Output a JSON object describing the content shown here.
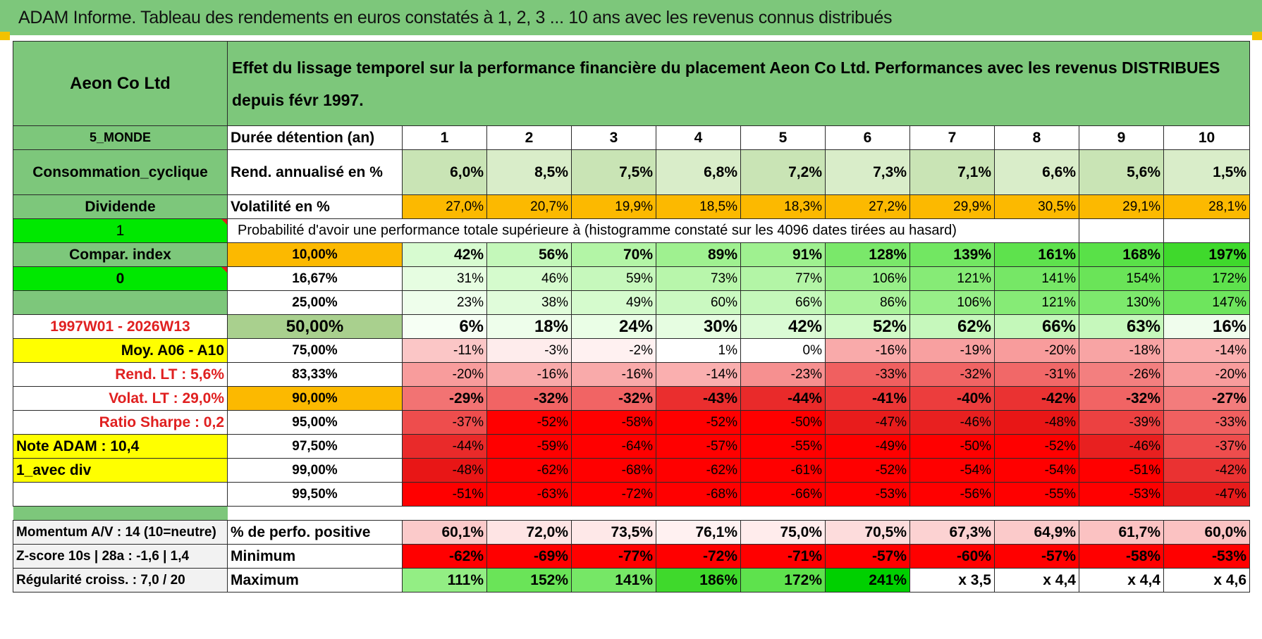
{
  "title": "ADAM Informe. Tableau des rendements en euros constatés à 1, 2, 3 ... 10 ans avec les revenus connus distribués",
  "header": {
    "company": "Aeon Co Ltd",
    "description": "Effet du lissage temporel sur la performance financière du placement Aeon Co Ltd. Performances avec les revenus DISTRIBUES depuis févr 1997."
  },
  "left": {
    "region": "5_MONDE",
    "sector": "Consommation_cyclique",
    "dividend": "Dividende",
    "flag1": "1",
    "compar": "Compar. index",
    "flag0": "0",
    "period": "1997W01 - 2026W13",
    "moy": "Moy. A06 - A10",
    "rend_lt": "Rend. LT :   5,6%",
    "volat_lt": "Volat. LT :   29,0%",
    "sharpe": "Ratio Sharpe :    0,2",
    "note": "Note ADAM : 10,4",
    "div": "1_avec div"
  },
  "rows": {
    "duration": {
      "label": "Durée détention (an)",
      "values": [
        "1",
        "2",
        "3",
        "4",
        "5",
        "6",
        "7",
        "8",
        "9",
        "10"
      ]
    },
    "return": {
      "label": "Rend. annualisé en %",
      "values": [
        "6,0%",
        "8,5%",
        "7,5%",
        "6,8%",
        "7,2%",
        "7,3%",
        "7,1%",
        "6,6%",
        "5,6%",
        "1,5%"
      ]
    },
    "volatility": {
      "label": "Volatilité en %",
      "values": [
        "27,0%",
        "20,7%",
        "19,9%",
        "18,5%",
        "18,3%",
        "27,2%",
        "29,9%",
        "30,5%",
        "29,1%",
        "28,1%"
      ]
    },
    "prob_caption": "Probabilité d'avoir une performance totale supérieure à (histogramme constaté sur les 4096 dates tirées au hasard)",
    "probs": [
      {
        "level": "10,00%",
        "values": [
          "42%",
          "56%",
          "70%",
          "89%",
          "91%",
          "128%",
          "139%",
          "161%",
          "168%",
          "197%"
        ],
        "colors": [
          "#d7fbd0",
          "#c4f8ba",
          "#b3f5a6",
          "#9ff190",
          "#9ff190",
          "#7ae86a",
          "#72e762",
          "#5ee24d",
          "#59e148",
          "#3fd92c"
        ]
      },
      {
        "level": "16,67%",
        "values": [
          "31%",
          "46%",
          "59%",
          "73%",
          "77%",
          "106%",
          "121%",
          "141%",
          "154%",
          "172%"
        ],
        "colors": [
          "#e6fde1",
          "#d5fbcd",
          "#c6f8bc",
          "#b8f6ab",
          "#b3f5a6",
          "#97ef88",
          "#86eb76",
          "#76e766",
          "#6ae458",
          "#5ee24d"
        ]
      },
      {
        "level": "25,00%",
        "values": [
          "23%",
          "38%",
          "49%",
          "60%",
          "66%",
          "86%",
          "106%",
          "121%",
          "130%",
          "147%"
        ],
        "colors": [
          "#eefeeb",
          "#e0fcda",
          "#d5fbcd",
          "#caf9c1",
          "#c4f8ba",
          "#aaf39b",
          "#97ef88",
          "#86eb76",
          "#7de96d",
          "#6ee55d"
        ]
      },
      {
        "level": "50,00%",
        "values": [
          "6%",
          "18%",
          "24%",
          "30%",
          "42%",
          "52%",
          "62%",
          "66%",
          "63%",
          "16%"
        ],
        "colors": [
          "#f6fff4",
          "#eefeeb",
          "#eafee6",
          "#e6fde1",
          "#dbfbd5",
          "#d0fac7",
          "#c6f8bc",
          "#c4f8ba",
          "#c6f8bc",
          "#f0fded"
        ]
      },
      {
        "level": "75,00%",
        "values": [
          "-11%",
          "-3%",
          "-2%",
          "1%",
          "0%",
          "-16%",
          "-19%",
          "-20%",
          "-18%",
          "-14%"
        ],
        "colors": [
          "#fbc6c6",
          "#feecec",
          "#fff1f1",
          "#ffffff",
          "#ffffff",
          "#f9aaaa",
          "#f8a0a0",
          "#f89c9c",
          "#f8a4a4",
          "#faafaf"
        ]
      },
      {
        "level": "83,33%",
        "values": [
          "-20%",
          "-16%",
          "-16%",
          "-14%",
          "-23%",
          "-33%",
          "-32%",
          "-31%",
          "-26%",
          "-20%"
        ],
        "colors": [
          "#f89c9c",
          "#f9aaaa",
          "#f9aaaa",
          "#faafaf",
          "#f69090",
          "#f06060",
          "#f16464",
          "#f16868",
          "#f37f7f",
          "#f89c9c"
        ]
      },
      {
        "level": "90,00%",
        "values": [
          "-29%",
          "-32%",
          "-32%",
          "-43%",
          "-44%",
          "-41%",
          "-40%",
          "-42%",
          "-32%",
          "-27%"
        ],
        "colors": [
          "#f27373",
          "#f16464",
          "#f16464",
          "#ea2e2e",
          "#e92a2a",
          "#eb3636",
          "#ec3d3d",
          "#ea3232",
          "#f16464",
          "#f37c7c"
        ]
      },
      {
        "level": "95,00%",
        "values": [
          "-37%",
          "-52%",
          "-58%",
          "-52%",
          "-50%",
          "-47%",
          "-46%",
          "-48%",
          "-39%",
          "-33%"
        ],
        "colors": [
          "#ee4d4d",
          "#ff0000",
          "#ff0000",
          "#ff0000",
          "#ff0000",
          "#e81c1c",
          "#e82020",
          "#e81616",
          "#ec4141",
          "#f06060"
        ]
      },
      {
        "level": "97,50%",
        "values": [
          "-44%",
          "-59%",
          "-64%",
          "-57%",
          "-55%",
          "-49%",
          "-50%",
          "-52%",
          "-46%",
          "-37%"
        ],
        "colors": [
          "#e92a2a",
          "#ff0000",
          "#ff0000",
          "#ff0000",
          "#ff0000",
          "#ff0000",
          "#ff0000",
          "#ff0000",
          "#e82020",
          "#ee4d4d"
        ]
      },
      {
        "level": "99,00%",
        "values": [
          "-48%",
          "-62%",
          "-68%",
          "-62%",
          "-61%",
          "-52%",
          "-54%",
          "-54%",
          "-51%",
          "-42%"
        ],
        "colors": [
          "#e81616",
          "#ff0000",
          "#ff0000",
          "#ff0000",
          "#ff0000",
          "#ff0000",
          "#ff0000",
          "#ff0000",
          "#ff0000",
          "#ea3232"
        ]
      },
      {
        "level": "99,50%",
        "values": [
          "-51%",
          "-63%",
          "-72%",
          "-68%",
          "-66%",
          "-53%",
          "-56%",
          "-55%",
          "-53%",
          "-47%"
        ],
        "colors": [
          "#ff0000",
          "#ff0000",
          "#ff0000",
          "#ff0000",
          "#ff0000",
          "#ff0000",
          "#ff0000",
          "#ff0000",
          "#ff0000",
          "#e81c1c"
        ]
      }
    ],
    "stats": [
      {
        "left": "Momentum A/V : 14 (10=neutre)",
        "label": "% de perfo. positive",
        "values": [
          "60,1%",
          "72,0%",
          "73,5%",
          "76,1%",
          "75,0%",
          "70,5%",
          "67,3%",
          "64,9%",
          "61,7%",
          "60,0%"
        ],
        "colors": [
          "#fbcaca",
          "#fee4e4",
          "#fee8e8",
          "#fff1f1",
          "#ffecec",
          "#fddcdc",
          "#fcd2d2",
          "#fbcaca",
          "#fbc2c2",
          "#fbc2c2"
        ]
      },
      {
        "left": "Z-score 10s | 28a : -1,6 | 1,4",
        "label": "Minimum",
        "values": [
          "-62%",
          "-69%",
          "-77%",
          "-72%",
          "-71%",
          "-57%",
          "-60%",
          "-57%",
          "-58%",
          "-53%"
        ],
        "colors": [
          "#ff0000",
          "#ff0000",
          "#ff0000",
          "#ff0000",
          "#ff0000",
          "#ff0000",
          "#ff0000",
          "#ff0000",
          "#ff0000",
          "#ff0000"
        ]
      },
      {
        "left": "Régularité croiss. : 7,0 / 20",
        "label": "Maximum",
        "values": [
          "111%",
          "152%",
          "141%",
          "186%",
          "172%",
          "241%",
          "x 3,5",
          "x 4,4",
          "x 4,4",
          "x 4,6"
        ],
        "colors": [
          "#93ee84",
          "#6ae458",
          "#76e766",
          "#3fd92c",
          "#5ee24d",
          "#00d000",
          "#ffffff",
          "#ffffff",
          "#ffffff",
          "#ffffff"
        ]
      }
    ]
  }
}
